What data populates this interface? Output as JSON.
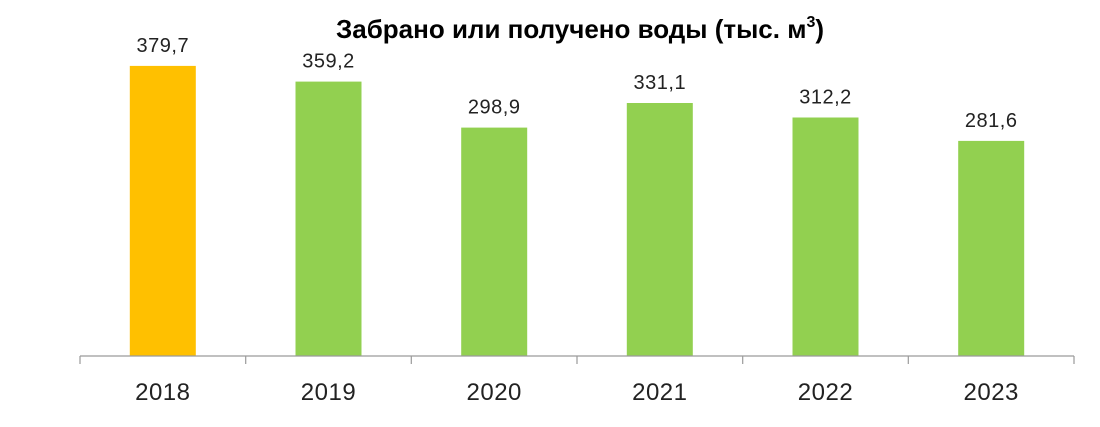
{
  "chart_data": {
    "type": "bar",
    "title": "Забрано или получено воды (тыс. м",
    "title_superscript": "3",
    "title_suffix": ")",
    "categories": [
      "2018",
      "2019",
      "2020",
      "2021",
      "2022",
      "2023"
    ],
    "values": [
      379.7,
      359.2,
      298.9,
      331.1,
      312.2,
      281.6
    ],
    "value_labels": [
      "379,7",
      "359,2",
      "298,9",
      "331,1",
      "312,2",
      "281,6"
    ],
    "ylim": [
      0,
      400
    ],
    "grid": false,
    "legend": "none",
    "colors": {
      "highlight": "#FFC000",
      "default": "#92D050"
    },
    "highlight_index": 0
  }
}
